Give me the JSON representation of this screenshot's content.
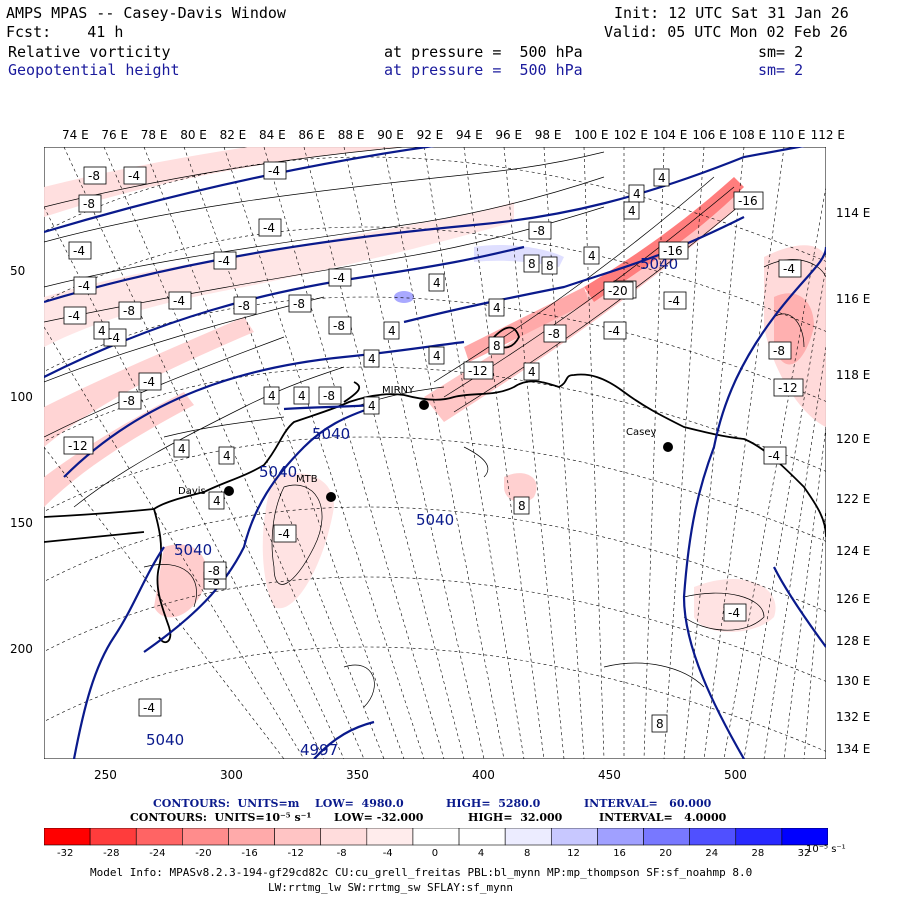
{
  "header": {
    "title": "AMPS MPAS -- Casey-Davis Window",
    "fcst": "Fcst:    41 h",
    "init": "Init: 12 UTC Sat 31 Jan 26",
    "valid": "Valid: 05 UTC Mon 02 Feb 26",
    "field1": {
      "name": "Relative vorticity",
      "level": "at pressure =  500 hPa",
      "sm": "sm= 2"
    },
    "field2": {
      "name": "Geopotential height",
      "level": "at pressure =  500 hPa",
      "sm": "sm= 2"
    }
  },
  "axes": {
    "top_lon": [
      "74 E",
      "76 E",
      "78 E",
      "80 E",
      "82 E",
      "84 E",
      "86 E",
      "88 E",
      "90 E",
      "92 E",
      "94 E",
      "96 E",
      "98 E",
      "100 E",
      "102 E",
      "104 E",
      "106 E",
      "108 E",
      "110 E",
      "112 E"
    ],
    "right_lon": [
      "114 E",
      "116 E",
      "118 E",
      "120 E",
      "122 E",
      "124 E",
      "126 E",
      "128 E",
      "130 E",
      "132 E",
      "134 E"
    ],
    "left_ticks": [
      "50",
      "100",
      "150",
      "200"
    ],
    "bottom_ticks": [
      "250",
      "300",
      "350",
      "400",
      "450",
      "500"
    ]
  },
  "stations": [
    {
      "name": "Davis"
    },
    {
      "name": "MTB"
    },
    {
      "name": "MIRNY"
    },
    {
      "name": "Casey"
    }
  ],
  "height_contour_labels": [
    "5040",
    "5040",
    "5040",
    "5040",
    "5040",
    "5040",
    "4997"
  ],
  "vort_labels": [
    "-8",
    "-4",
    "-4",
    "-8",
    "-4",
    "-4",
    "-4",
    "-8",
    "-4",
    "-4",
    "-8",
    "-8",
    "-4",
    "-8",
    "-8",
    "-4",
    "-4",
    "-12",
    "-8",
    "-4",
    "-8",
    "-4",
    "-8",
    "-16",
    "-16",
    "-8",
    "-12",
    "-20",
    "-8",
    "-4",
    "-4",
    "-8",
    "-12",
    "-4",
    "-4",
    "-8",
    "-4",
    "-4",
    "4",
    "4",
    "4",
    "4",
    "4",
    "4",
    "4",
    "4",
    "4",
    "4",
    "4",
    "8",
    "8",
    "4",
    "4",
    "8",
    "8",
    "8",
    "4",
    "4",
    "4",
    "4"
  ],
  "contour_info": {
    "line1": {
      "label": "CONTOURS:  UNITS=m",
      "low": "LOW=  4980.0",
      "high": "HIGH=  5280.0",
      "interval": "INTERVAL=   60.000"
    },
    "line2": {
      "label": "CONTOURS:  UNITS=10⁻⁵ s⁻¹",
      "low": "LOW= -32.000",
      "high": "HIGH=  32.000",
      "interval": "INTERVAL=   4.0000"
    }
  },
  "colorbar": {
    "labels": [
      "-32",
      "-28",
      "-24",
      "-20",
      "-16",
      "-12",
      "-8",
      "-4",
      "0",
      "4",
      "8",
      "12",
      "16",
      "20",
      "24",
      "28",
      "32"
    ],
    "unit": "10⁻⁵ s⁻¹",
    "colors": [
      "#ff0000",
      "#ff3c3c",
      "#ff6464",
      "#ff8c8c",
      "#ffaaaa",
      "#ffc4c4",
      "#ffdcdc",
      "#ffecec",
      "#ffffff",
      "#ffffff",
      "#ececff",
      "#c8c8ff",
      "#a0a0ff",
      "#7878ff",
      "#5050ff",
      "#2828ff",
      "#0000ff"
    ]
  },
  "model_info": {
    "line1": "Model Info: MPASv8.2.3-194-gf29cd82c CU:cu_grell_freitas PBL:bl_mynn MP:mp_thompson SF:sf_noahmp 8.0",
    "line2": "LW:rrtmg_lw SW:rrtmg_sw SFLAY:sf_mynn"
  },
  "colors": {
    "height_line": "#0a1a8c",
    "coast": "#000000",
    "text_blue": "#1a1a9c"
  }
}
